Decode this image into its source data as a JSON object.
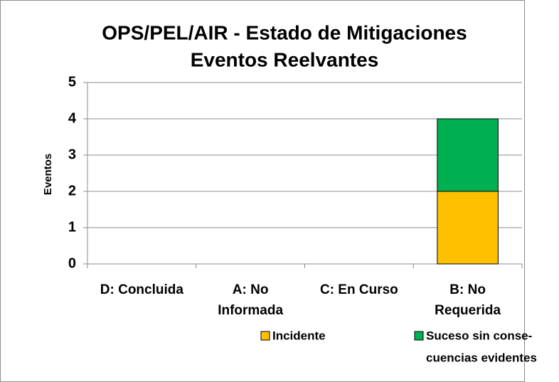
{
  "chart_data": {
    "type": "stacked_bar",
    "title": [
      "OPS/PEL/AIR - Estado de Mitigaciones",
      "Eventos Reelvantes"
    ],
    "y_label": "Eventos",
    "categories": [
      [
        "D: Concluida"
      ],
      [
        "A: No",
        "Informada"
      ],
      [
        "C: En Curso"
      ],
      [
        "B: No",
        "Requerida"
      ]
    ],
    "series": [
      {
        "name": [
          "Incidente"
        ],
        "color": "#FFC000",
        "values": [
          0,
          0,
          0,
          2
        ]
      },
      {
        "name": [
          "Suceso sin conse-",
          "cuencias evidentes"
        ],
        "color": "#00B050",
        "values": [
          0,
          0,
          0,
          2
        ]
      }
    ],
    "ylim": [
      0,
      5
    ],
    "yticks": [
      0,
      1,
      2,
      3,
      4,
      5
    ],
    "grid": true,
    "legend": "bottom"
  }
}
